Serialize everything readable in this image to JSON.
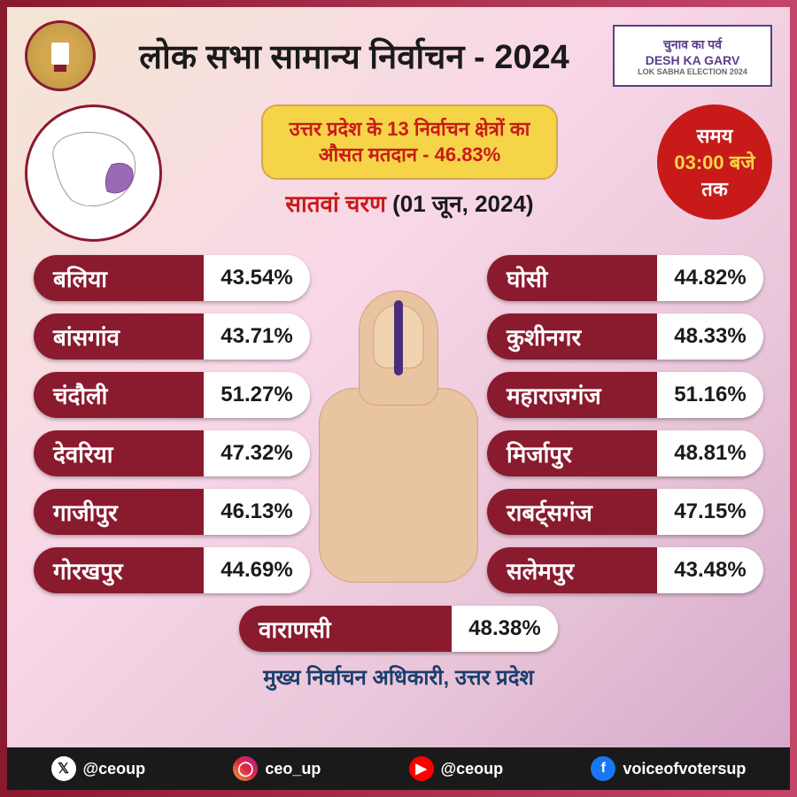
{
  "header": {
    "title": "लोक सभा सामान्य निर्वाचन - 2024",
    "campaign_line1": "चुनाव का पर्व",
    "campaign_line2": "DESH KA GARV",
    "campaign_line3": "LOK SABHA ELECTION 2024"
  },
  "info": {
    "avg_line1": "उत्तर प्रदेश के 13 निर्वाचन क्षेत्रों का",
    "avg_line2": "औसत मतदान - 46.83%",
    "phase": "सातवां चरण",
    "phase_date": " (01 जून, 2024)",
    "time_l1": "समय",
    "time_l2": "03:00 बजे",
    "time_l3": "तक"
  },
  "constituencies": {
    "left": [
      {
        "name": "बलिया",
        "value": "43.54%"
      },
      {
        "name": "बांसगांव",
        "value": "43.71%"
      },
      {
        "name": "चंदौली",
        "value": "51.27%"
      },
      {
        "name": "देवरिया",
        "value": "47.32%"
      },
      {
        "name": "गाजीपुर",
        "value": "46.13%"
      },
      {
        "name": "गोरखपुर",
        "value": "44.69%"
      }
    ],
    "right": [
      {
        "name": "घोसी",
        "value": "44.82%"
      },
      {
        "name": "कुशीनगर",
        "value": "48.33%"
      },
      {
        "name": "महाराजगंज",
        "value": "51.16%"
      },
      {
        "name": "मिर्जापुर",
        "value": "48.81%"
      },
      {
        "name": "राबर्ट्सगंज",
        "value": "47.15%"
      },
      {
        "name": "सलेमपुर",
        "value": "43.48%"
      }
    ],
    "center": {
      "name": "वाराणसी",
      "value": "48.38%"
    }
  },
  "footer": {
    "authority": "मुख्य निर्वाचन अधिकारी, उत्तर प्रदेश"
  },
  "social": {
    "x": "@ceoup",
    "ig": "ceo_up",
    "yt": "@ceoup",
    "fb": "voiceofvotersup"
  },
  "colors": {
    "pill_bg": "#8a1a2e",
    "pill_text": "#ffffff",
    "value_bg": "#ffffff",
    "value_text": "#1a1a1a",
    "accent_red": "#c91a1a",
    "accent_yellow": "#f5d547",
    "title_color": "#1a1a1a"
  },
  "typography": {
    "title_fontsize": 38,
    "pill_name_fontsize": 26,
    "pill_value_fontsize": 24,
    "avg_fontsize": 22,
    "phase_fontsize": 26
  }
}
